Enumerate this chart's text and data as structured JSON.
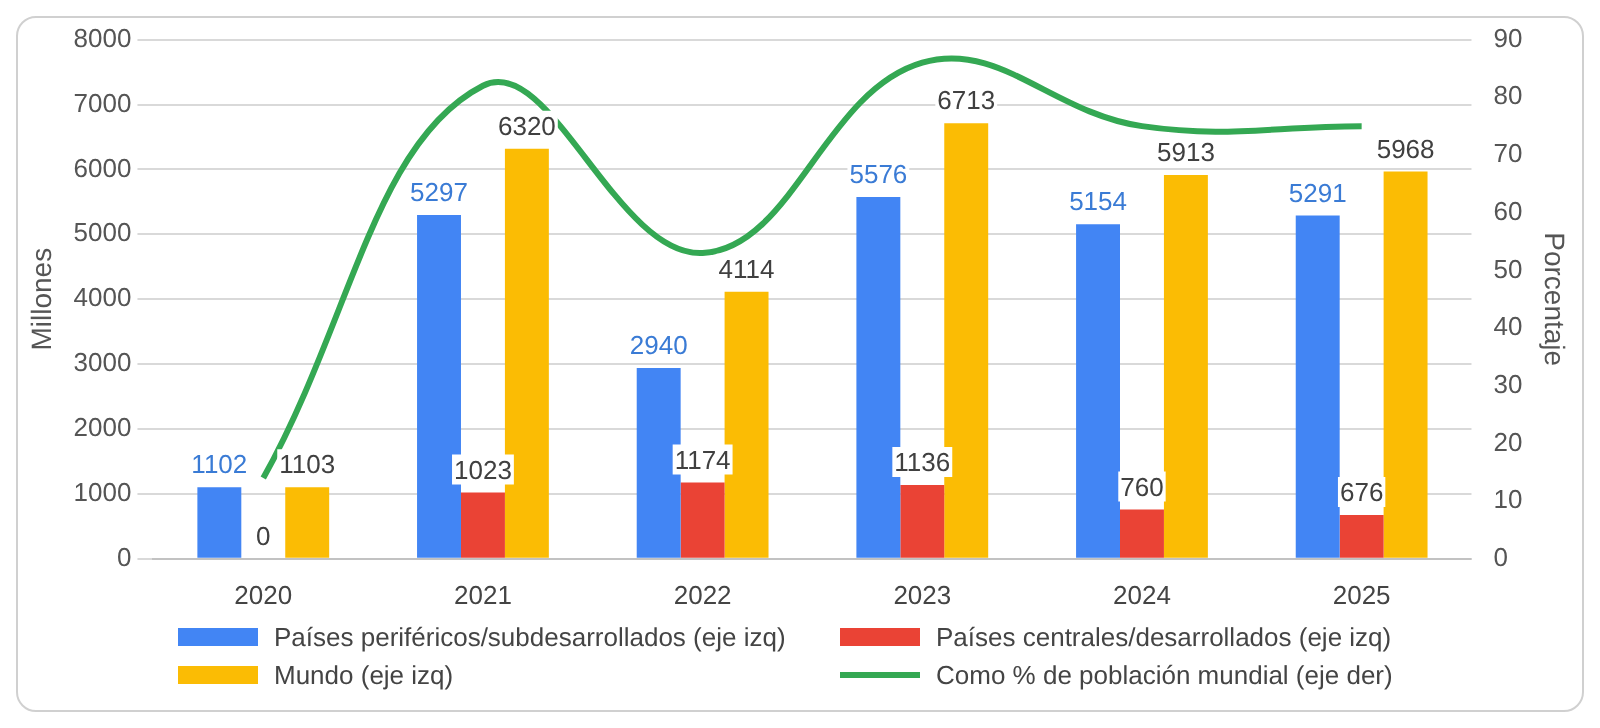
{
  "chart_data": {
    "type": "bar",
    "ylabel": "Millones",
    "y2label": "Porcentaje",
    "categories": [
      "2020",
      "2021",
      "2022",
      "2023",
      "2024",
      "2025"
    ],
    "series": [
      {
        "name": "Países periféricos/subdesarrollados (eje izq)",
        "color": "#4285f4",
        "values": [
          1102,
          5297,
          2940,
          5576,
          5154,
          5291
        ],
        "value_labels": [
          "1102",
          "5297",
          "2940",
          "5576",
          "5154",
          "5291"
        ]
      },
      {
        "name": "Países centrales/desarrollados (eje izq)",
        "color": "#ea4335",
        "values": [
          0,
          1023,
          1174,
          1136,
          760,
          676
        ],
        "value_labels": [
          "0",
          "1023",
          "1174",
          "1136",
          "760",
          "676"
        ]
      },
      {
        "name": "Mundo (eje izq)",
        "color": "#fbbc04",
        "values": [
          1103,
          6320,
          4114,
          6713,
          5913,
          5968
        ],
        "value_labels": [
          "1103",
          "6320",
          "4114",
          "6713",
          "5913",
          "5968"
        ]
      },
      {
        "name": "Como % de población mundial (eje der)",
        "color": "#34a853",
        "type": "line",
        "axis": "y2",
        "marker": "none",
        "values": [
          14,
          82,
          53,
          86,
          75,
          75
        ]
      }
    ],
    "ylim": [
      0,
      8000
    ],
    "yticks": [
      0,
      1000,
      2000,
      3000,
      4000,
      5000,
      6000,
      7000,
      8000
    ],
    "y2lim": [
      0,
      90
    ],
    "y2ticks": [
      0,
      10,
      20,
      30,
      40,
      50,
      60,
      70,
      80,
      90
    ],
    "grid": "y",
    "legend": "bottom"
  }
}
